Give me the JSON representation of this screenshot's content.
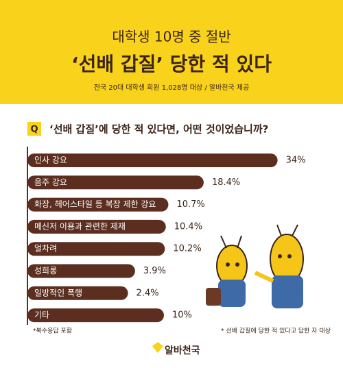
{
  "chart_data": {
    "type": "bar",
    "orientation": "horizontal",
    "title": "대학생 10명 중 절반",
    "headline": "‘선배 갑질’ 당한 적 있다",
    "subtitle": "전국 20대 대학생 회원 1,028명 대상 / 알바천국 제공",
    "question_marker": "Q",
    "question": "‘선배 갑질’에 당한 적 있다면, 어떤 것이었습니까?",
    "categories": [
      "인사 강요",
      "음주 강요",
      "화장, 헤어스타일 등 복장 제한 강요",
      "메신저 이용과 관련한 제재",
      "얼차려",
      "성희롱",
      "일방적인 폭행",
      "기타"
    ],
    "values": [
      34,
      18.4,
      10.7,
      10.4,
      10.2,
      3.9,
      2.4,
      10
    ],
    "value_labels": [
      "34%",
      "18.4%",
      "10.7%",
      "10.4%",
      "10.2%",
      "3.9%",
      "2.4%",
      "10%"
    ],
    "color": "#5b2e1f",
    "notes": [
      "*복수응답 포함",
      "* 선배 갑질에 당한 적 있다고 답한 자 대상"
    ],
    "logo": "알바천국"
  }
}
